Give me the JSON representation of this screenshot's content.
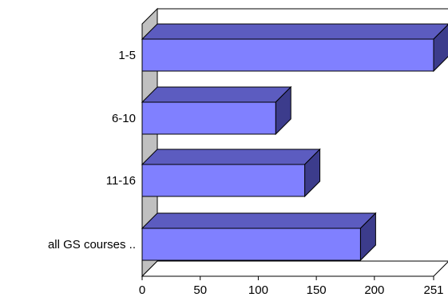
{
  "chart_data": {
    "type": "bar",
    "orientation": "horizontal",
    "style": "3d",
    "categories": [
      "1-5",
      "6-10",
      "11-16",
      "all GS courses .."
    ],
    "values": [
      251,
      115,
      140,
      188
    ],
    "xlim": [
      0,
      251
    ],
    "xticks": [
      "0",
      "50",
      "100",
      "150",
      "200",
      "251"
    ],
    "title": "",
    "xlabel": "",
    "ylabel": "",
    "grid": false,
    "legend": "none",
    "colors": {
      "bar_face": "#8080ff",
      "bar_top": "#5c5cc0",
      "bar_side": "#3c3c8c",
      "wall": "#c0c0c0",
      "outline": "#000000"
    }
  }
}
